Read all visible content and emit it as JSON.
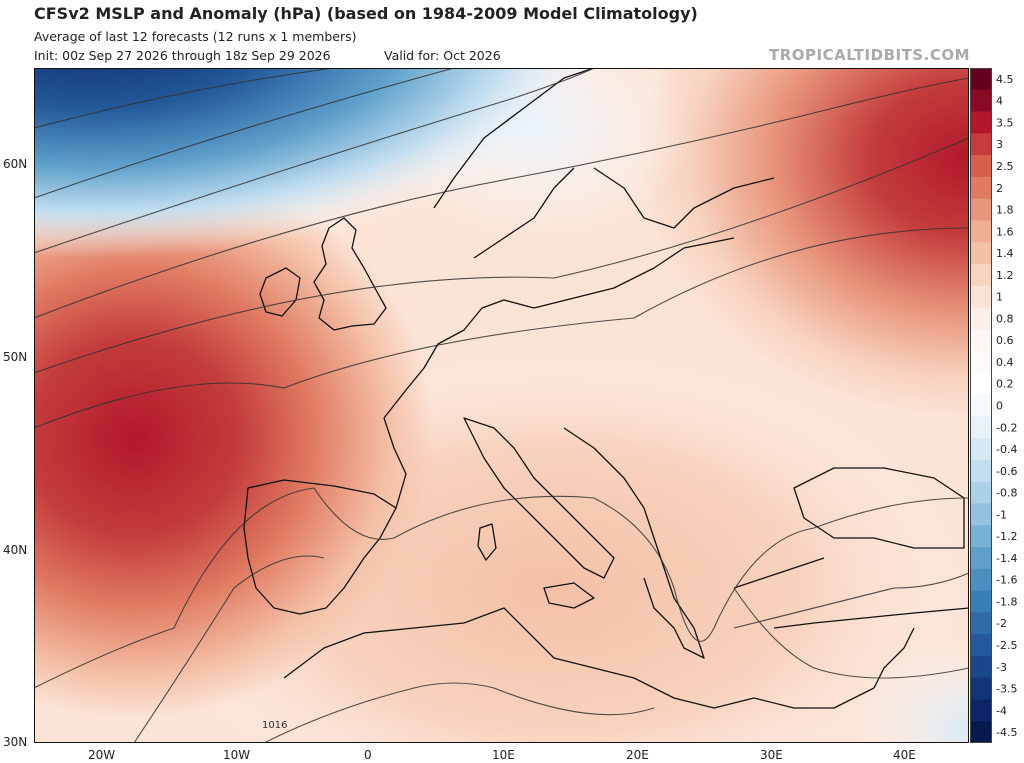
{
  "header": {
    "title": "CFSv2 MSLP and Anomaly (hPa) (based on 1984-2009 Model Climatology)",
    "subtitle": "Average of last 12 forecasts (12 runs x 1 members)",
    "init": "Init: 00z Sep 27 2026 through 18z Sep 29 2026",
    "valid": "Valid for: Oct 2026",
    "credit": "TROPICALTIDBITS.COM"
  },
  "axes": {
    "lon_labels": [
      "20W",
      "10W",
      "0",
      "10E",
      "20E",
      "30E",
      "40E"
    ],
    "lat_labels": [
      "60N",
      "50N",
      "40N",
      "30N"
    ]
  },
  "contour_label": "1016",
  "colorbar": {
    "labels": [
      "4.5",
      "4",
      "3.5",
      "3",
      "2.5",
      "2",
      "1.8",
      "1.6",
      "1.4",
      "1.2",
      "1",
      "0.8",
      "0.6",
      "0.4",
      "0.2",
      "0",
      "-0.2",
      "-0.4",
      "-0.6",
      "-0.8",
      "-1",
      "-1.2",
      "-1.4",
      "-1.6",
      "-1.8",
      "-2",
      "-2.5",
      "-3",
      "-3.5",
      "-4",
      "-4.5"
    ],
    "colors": [
      "#67001f",
      "#8b0a26",
      "#b2182b",
      "#c43c3c",
      "#d6604d",
      "#e07b62",
      "#e8957b",
      "#f0ad91",
      "#f4c0a6",
      "#f8d3bf",
      "#fbe3d6",
      "#fdeee7",
      "#fef6f2",
      "#fffafa",
      "#ffffff",
      "#f6fafd",
      "#e8f2f9",
      "#d6e8f4",
      "#c2def0",
      "#abd0e8",
      "#92c2e0",
      "#77b1d6",
      "#5ea0cb",
      "#4a8fc0",
      "#3a7eb6",
      "#2d6ca8",
      "#23599a",
      "#1a478b",
      "#12357a",
      "#0b2566",
      "#061a50"
    ]
  },
  "legend_colors": {
    "positive_max": "#b8282d",
    "neutral": "#ffffff",
    "negative_max": "#08306b"
  }
}
